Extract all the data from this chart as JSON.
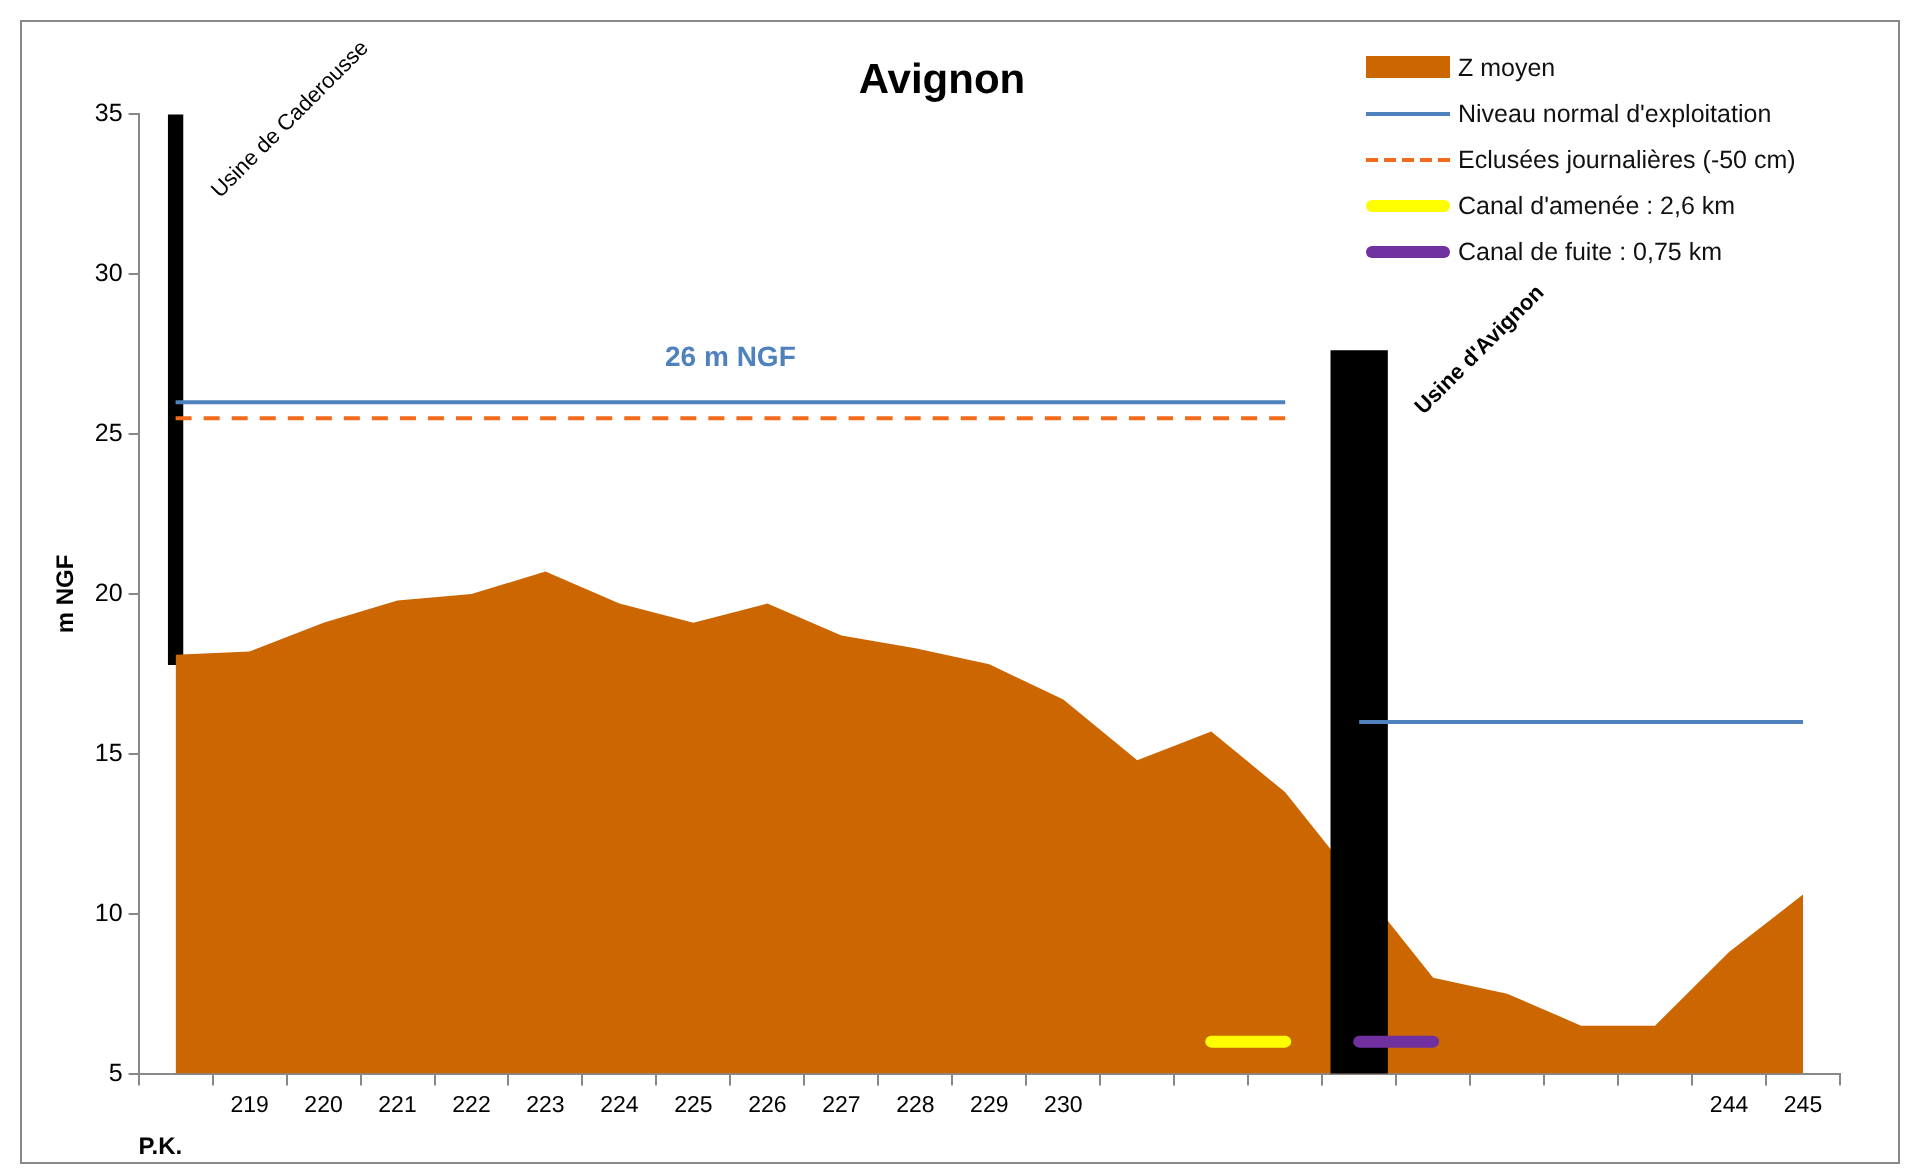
{
  "chart_data": {
    "type": "area",
    "title": "Avignon",
    "xlabel": "P.K.",
    "ylabel": "m NGF",
    "categories": [
      null,
      "219",
      "220",
      "221",
      "222",
      "223",
      "224",
      "225",
      "226",
      "227",
      "228",
      "229",
      "230",
      null,
      null,
      null,
      null,
      null,
      null,
      null,
      null,
      "244",
      "245"
    ],
    "series": [
      {
        "name": "Z moyen",
        "color": "#cc6600",
        "values": [
          18.1,
          18.2,
          19.1,
          19.8,
          20.0,
          20.7,
          19.7,
          19.1,
          19.7,
          18.7,
          18.3,
          17.8,
          16.7,
          14.8,
          15.7,
          13.8,
          null,
          8.0,
          7.5,
          6.5,
          6.5,
          8.8,
          10.6
        ]
      },
      {
        "name": "Niveau normal d'exploitation",
        "type": "line",
        "line_style": "solid",
        "color": "#4f81bd",
        "values": [
          26,
          26,
          26,
          26,
          26,
          26,
          26,
          26,
          26,
          26,
          26,
          26,
          26,
          26,
          26,
          26,
          null,
          null,
          null,
          null,
          null,
          null,
          null
        ]
      },
      {
        "type": "line",
        "line_style": "solid",
        "color": "#4f81bd",
        "values": [
          null,
          null,
          null,
          null,
          null,
          null,
          null,
          null,
          null,
          null,
          null,
          null,
          null,
          null,
          null,
          null,
          16,
          16,
          16,
          16,
          16,
          16,
          16
        ]
      },
      {
        "name": "Eclusées journalières (-50 cm)",
        "type": "line",
        "line_style": "dashed",
        "color": "#f26b1d",
        "values": [
          25.5,
          25.5,
          25.5,
          25.5,
          25.5,
          25.5,
          25.5,
          25.5,
          25.5,
          25.5,
          25.5,
          25.5,
          25.5,
          25.5,
          25.5,
          25.5,
          null,
          null,
          null,
          null,
          null,
          null,
          null
        ]
      },
      {
        "name": "Canal d'amenée : 2,6 km",
        "type": "line",
        "line_style": "solid",
        "color": "#ffff00",
        "values": [
          null,
          null,
          null,
          null,
          null,
          null,
          null,
          null,
          null,
          null,
          null,
          null,
          null,
          null,
          6,
          6,
          null,
          null,
          null,
          null,
          null,
          null,
          null
        ]
      },
      {
        "name": "Canal de fuite : 0,75 km",
        "type": "line",
        "line_style": "solid",
        "color": "#7030a0",
        "values": [
          null,
          null,
          null,
          null,
          null,
          null,
          null,
          null,
          null,
          null,
          null,
          null,
          null,
          null,
          null,
          null,
          6,
          6,
          null,
          null,
          null,
          null,
          null
        ]
      },
      {
        "type": "bar",
        "color": "#000000",
        "base": [
          17.8,
          null,
          null,
          null,
          null,
          null,
          null,
          null,
          null,
          null,
          null,
          null,
          null,
          null,
          null,
          null,
          null,
          null,
          null,
          null,
          null,
          null,
          null
        ],
        "values": [
          17.2,
          null,
          null,
          null,
          null,
          null,
          null,
          null,
          null,
          null,
          null,
          null,
          null,
          null,
          null,
          null,
          null,
          null,
          null,
          null,
          null,
          null,
          null
        ]
      },
      {
        "type": "bar",
        "color": "#000000",
        "base": [
          null,
          null,
          null,
          null,
          null,
          null,
          null,
          null,
          null,
          null,
          null,
          null,
          null,
          null,
          null,
          null,
          5,
          null,
          null,
          null,
          null,
          null,
          null
        ],
        "values": [
          null,
          null,
          null,
          null,
          null,
          null,
          null,
          null,
          null,
          null,
          null,
          null,
          null,
          null,
          null,
          null,
          22.6,
          null,
          null,
          null,
          null,
          null,
          null
        ]
      }
    ],
    "ylim": [
      5,
      35
    ],
    "yticks": [
      5,
      10,
      15,
      20,
      25,
      30,
      35
    ],
    "grid": false,
    "legend": "top right",
    "annotations": [
      "Usine de Caderousse",
      {
        "text": "26 m NGF",
        "y": 26
      },
      "Usine d'Avignon"
    ]
  }
}
